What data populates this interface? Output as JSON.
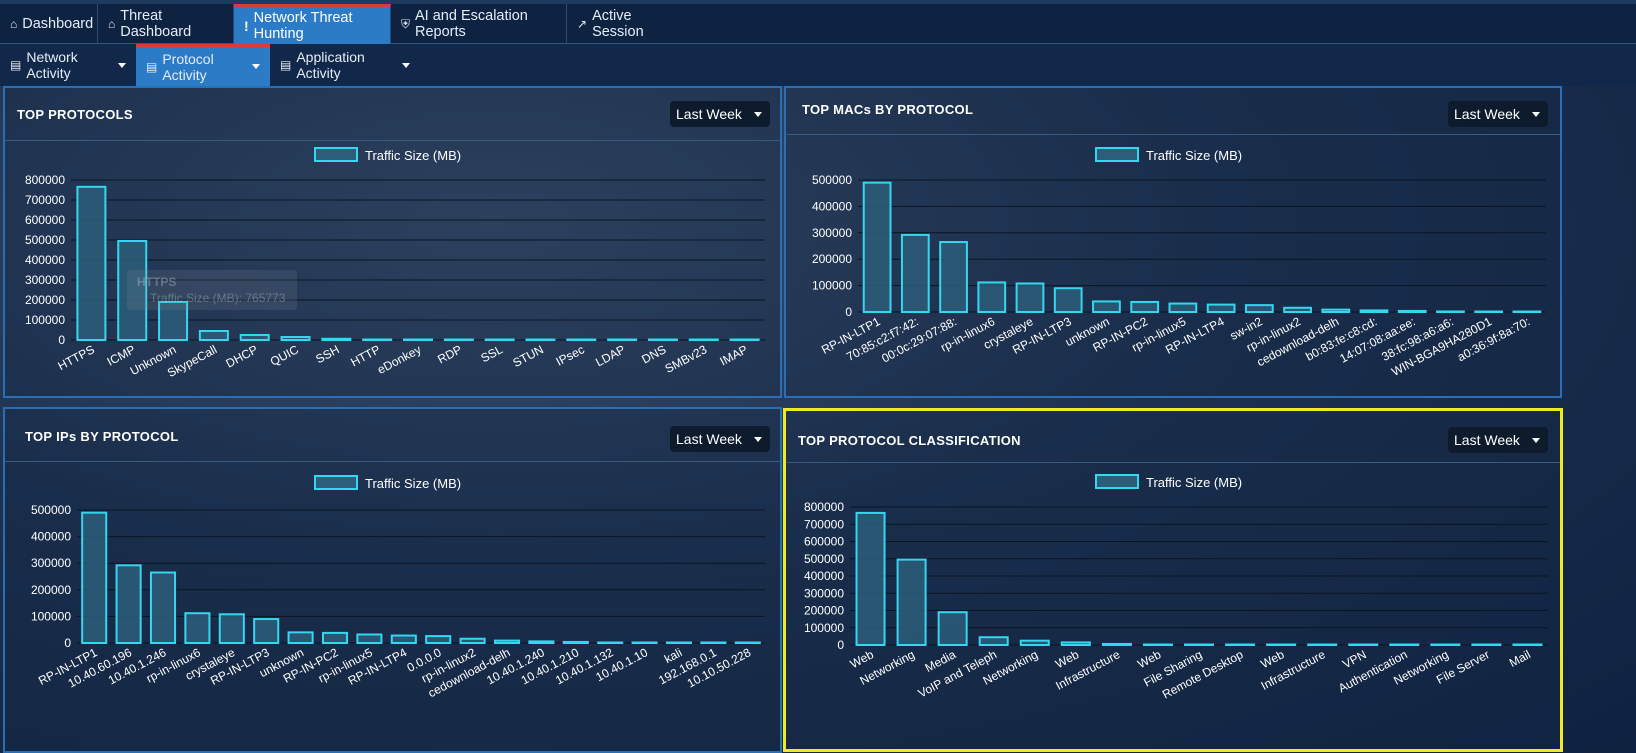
{
  "nav": {
    "tabs": [
      {
        "label": "Dashboard",
        "icon": "home-icon"
      },
      {
        "label": "Threat Dashboard",
        "icon": "home-icon"
      },
      {
        "label": "Network Threat Hunting",
        "icon": "exclamation-icon",
        "active": true
      },
      {
        "label": "AI and Escalation Reports",
        "icon": "shield-icon"
      },
      {
        "label": "Active Session",
        "icon": "line-chart-icon"
      }
    ],
    "subtabs": [
      {
        "label": "Network Activity",
        "icon": "bar-chart-icon"
      },
      {
        "label": "Protocol Activity",
        "icon": "bar-chart-icon",
        "active": true
      },
      {
        "label": "Application Activity",
        "icon": "bar-chart-icon"
      }
    ]
  },
  "colors": {
    "accent": "#2c7bc7",
    "active_border": "#d93a3a",
    "bar_stroke": "#35d6f0",
    "bar_fill": "#2c5e7a",
    "highlight": "#f0ea1f"
  },
  "panels": {
    "top_protocols": {
      "title": "TOP PROTOCOLS",
      "range": "Last Week"
    },
    "top_macs": {
      "title": "TOP MACs BY PROTOCOL",
      "range": "Last Week"
    },
    "top_ips": {
      "title": "TOP IPs BY PROTOCOL",
      "range": "Last Week"
    },
    "top_classification": {
      "title": "TOP PROTOCOL CLASSIFICATION",
      "range": "Last Week"
    }
  },
  "tooltip": {
    "title": "HTTPS",
    "text": "Traffic Size (MB): 765773"
  },
  "chart_data": [
    {
      "id": "protocols",
      "type": "bar",
      "legend": "Traffic Size (MB)",
      "categories": [
        "HTTPS",
        "ICMP",
        "Unknown",
        "SkypeCall",
        "DHCP",
        "QUIC",
        "SSH",
        "HTTP",
        "eDonkey",
        "RDP",
        "SSL",
        "STUN",
        "IPsec",
        "LDAP",
        "DNS",
        "SMBv23",
        "IMAP"
      ],
      "values": [
        765773,
        495000,
        190000,
        45000,
        25000,
        15000,
        6000,
        1500,
        500,
        300,
        200,
        150,
        100,
        80,
        60,
        40,
        20
      ],
      "ylim": [
        0,
        800000
      ],
      "ticks": [
        0,
        100000,
        200000,
        300000,
        400000,
        500000,
        600000,
        700000,
        800000
      ]
    },
    {
      "id": "macs",
      "type": "bar",
      "legend": "Traffic Size (MB)",
      "categories": [
        "RP-IN-LTP1",
        "70:85:c2:f7:42:",
        "00:0c:29:07:88:",
        "rp-in-linux6",
        "crystaleye",
        "RP-IN-LTP3",
        "unknown",
        "RP-IN-PC2",
        "rp-in-linux5",
        "RP-IN-LTP4",
        "sw-in2",
        "rp-in-linux2",
        "cedownload-delh",
        "b0:83:fe:c8:cd:",
        "14:07:08:aa:ee:",
        "38:fc:98:a6:a6:",
        "WIN-BGA9HA280D1",
        "a0:36:9f:8a:70:"
      ],
      "values": [
        490000,
        292000,
        265000,
        112000,
        108000,
        90000,
        40000,
        38000,
        32000,
        28000,
        26000,
        16000,
        9000,
        6000,
        4000,
        2000,
        800,
        400
      ],
      "ylim": [
        0,
        500000
      ],
      "ticks": [
        0,
        100000,
        200000,
        300000,
        400000,
        500000
      ]
    },
    {
      "id": "ips",
      "type": "bar",
      "legend": "Traffic Size (MB)",
      "categories": [
        "RP-IN-LTP1",
        "10.40.60.196",
        "10.40.1.246",
        "rp-in-linux6",
        "crystaleye",
        "RP-IN-LTP3",
        "unknown",
        "RP-IN-PC2",
        "rp-in-linux5",
        "RP-IN-LTP4",
        "0.0.0.0",
        "rp-in-linux2",
        "cedownload-delh",
        "10.40.1.240",
        "10.40.1.210",
        "10.40.1.132",
        "10.40.1.10",
        "kali",
        "192.168.0.1",
        "10.10.50.228"
      ],
      "values": [
        490000,
        292000,
        265000,
        112000,
        108000,
        90000,
        40000,
        38000,
        32000,
        28000,
        26000,
        16000,
        9000,
        6000,
        4000,
        1500,
        800,
        400,
        200,
        100
      ],
      "ylim": [
        0,
        500000
      ],
      "ticks": [
        0,
        100000,
        200000,
        300000,
        400000,
        500000
      ]
    },
    {
      "id": "classification",
      "type": "bar",
      "legend": "Traffic Size (MB)",
      "categories": [
        "Web",
        "Networking",
        "Media",
        "VoIP and Teleph",
        "Networking",
        "Web",
        "Infrastructure",
        "Web",
        "File Sharing",
        "Remote Desktop",
        "Web",
        "Infrastructure",
        "VPN",
        "Authentication",
        "Networking",
        "File Server",
        "Mail"
      ],
      "values": [
        765773,
        495000,
        190000,
        45000,
        25000,
        15000,
        6000,
        1500,
        500,
        300,
        200,
        150,
        100,
        80,
        60,
        40,
        20
      ],
      "ylim": [
        0,
        800000
      ],
      "ticks": [
        0,
        100000,
        200000,
        300000,
        400000,
        500000,
        600000,
        700000,
        800000
      ]
    }
  ]
}
